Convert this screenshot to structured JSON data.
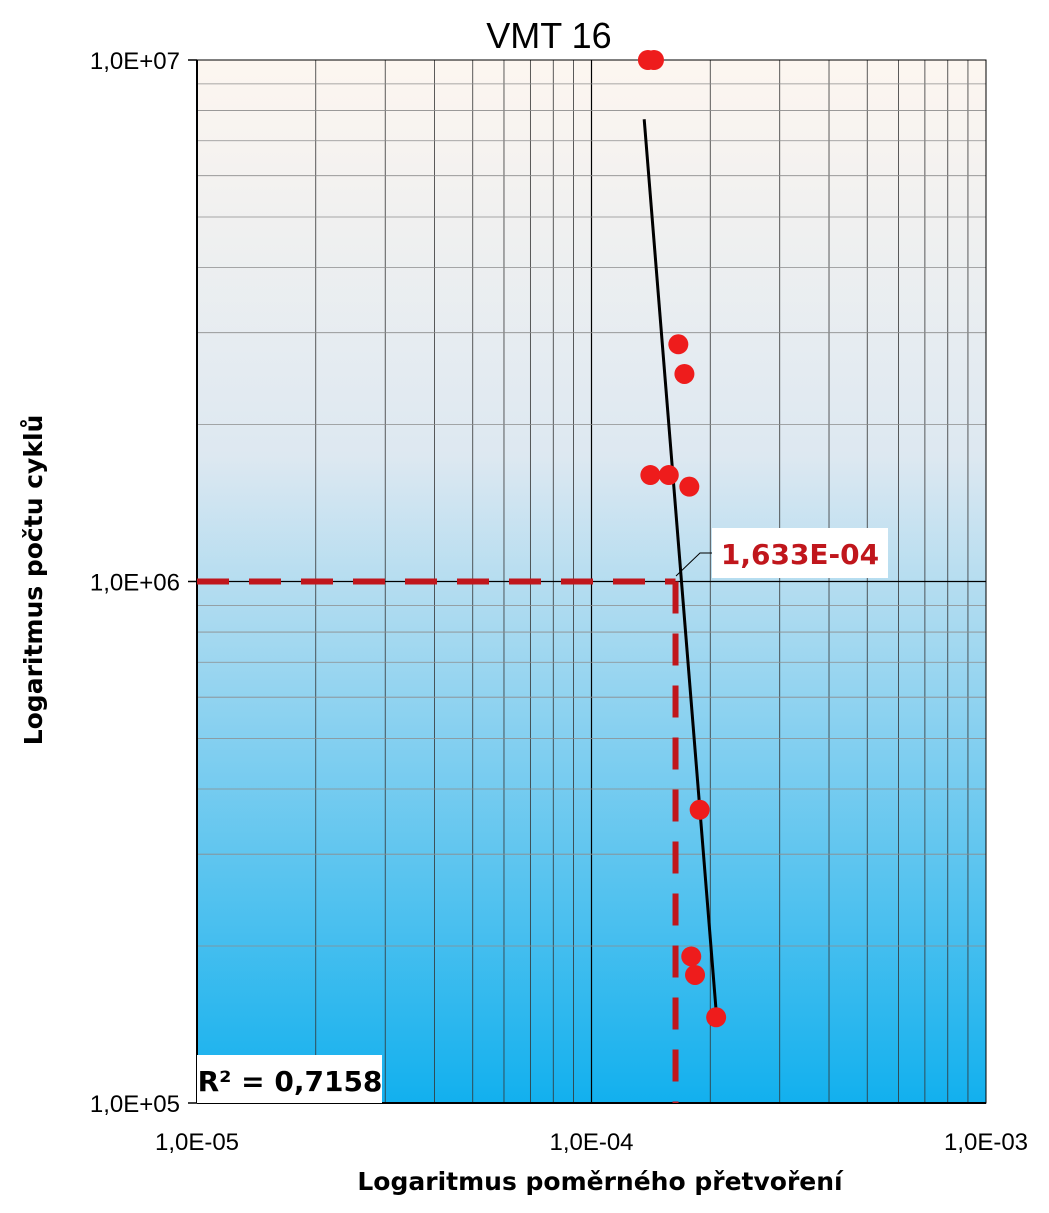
{
  "chart_data": {
    "type": "scatter",
    "title": "VMT 16",
    "xlabel": "Logaritmus poměrného přetvoření",
    "ylabel": "Logaritmus počtu cyklů",
    "x_scale": "log",
    "y_scale": "log",
    "xlim": [
      1e-05,
      0.001
    ],
    "ylim": [
      100000,
      10000000
    ],
    "x_ticks": [
      "1,0E-05",
      "1,0E-04",
      "1,0E-03"
    ],
    "y_ticks": [
      "1,0E+05",
      "1,0E+06",
      "1,0E+07"
    ],
    "grid": true,
    "legend": "none",
    "series": [
      {
        "x": [
          0.000139,
          0.000144,
          0.000166,
          0.000172,
          0.000141,
          0.000157,
          0.000177,
          0.000188,
          0.000179,
          0.000183,
          0.000207
        ],
        "y": [
          10000000,
          10000000,
          2850000,
          2500000,
          1600000,
          1600000,
          1520000,
          365000,
          191000,
          176000,
          146000
        ],
        "color": "#ee1c1c"
      }
    ],
    "trendline": {
      "x": [
        0.000136,
        0.000207
      ],
      "y": [
        7700000,
        150000
      ],
      "color": "#000000"
    },
    "reference_lines": {
      "y_value": 1000000,
      "x_value": 0.0001633,
      "color": "#c0161c"
    },
    "annotations": {
      "intersection_label": "1,633E-04",
      "intersection_label_color": "#c0161c",
      "r_squared": "R² = 0,7158"
    },
    "background_gradient": [
      "#fdf6f0",
      "#dde8f1",
      "#12b0ee"
    ]
  }
}
